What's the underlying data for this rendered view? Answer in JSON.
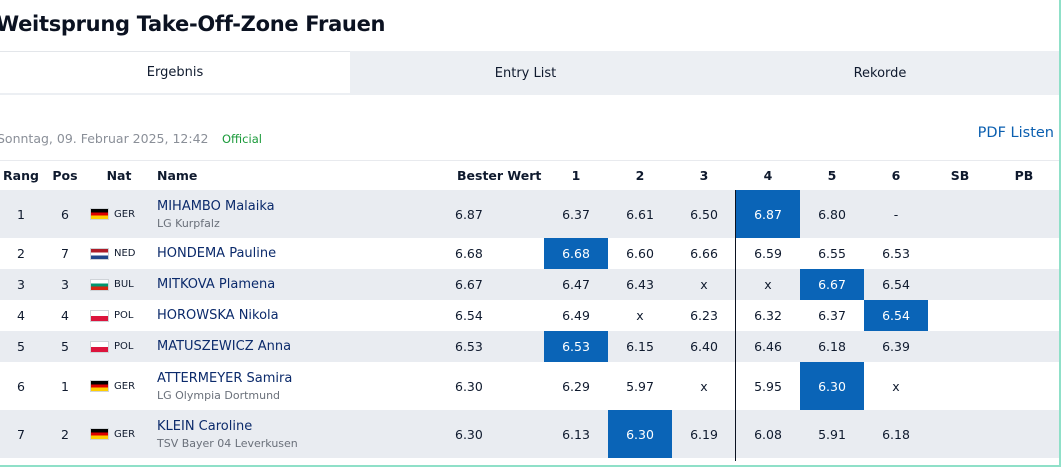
{
  "page": {
    "title": "Weitsprung Take-Off-Zone Frauen",
    "date": "Sonntag, 09. Februar 2025, 12:42",
    "status": "Official",
    "pdf_link": "PDF Listen"
  },
  "tabs": [
    {
      "label": "Ergebnis",
      "active": true
    },
    {
      "label": "Entry List",
      "active": false
    },
    {
      "label": "Rekorde",
      "active": false
    }
  ],
  "table": {
    "columns": {
      "rang": "Rang",
      "pos": "Pos",
      "nat": "Nat",
      "name": "Name",
      "best": "Bester Wert",
      "a1": "1",
      "a2": "2",
      "a3": "3",
      "a4": "4",
      "a5": "5",
      "a6": "6",
      "sb": "SB",
      "pb": "PB"
    },
    "highlight_color": "#0a64b7",
    "rows": [
      {
        "rang": "1",
        "pos": "6",
        "nat": "GER",
        "flag": "flag-ger",
        "name": "MIHAMBO Malaika",
        "club": "LG Kurpfalz",
        "best": "6.87",
        "attempts": [
          "6.37",
          "6.61",
          "6.50",
          "6.87",
          "6.80",
          "-"
        ],
        "best_index": 3,
        "sb": "",
        "pb": ""
      },
      {
        "rang": "2",
        "pos": "7",
        "nat": "NED",
        "flag": "flag-ned",
        "name": "HONDEMA Pauline",
        "club": "",
        "best": "6.68",
        "attempts": [
          "6.68",
          "6.60",
          "6.66",
          "6.59",
          "6.55",
          "6.53"
        ],
        "best_index": 0,
        "sb": "",
        "pb": ""
      },
      {
        "rang": "3",
        "pos": "3",
        "nat": "BUL",
        "flag": "flag-bul",
        "name": "MITKOVA Plamena",
        "club": "",
        "best": "6.67",
        "attempts": [
          "6.47",
          "6.43",
          "x",
          "x",
          "6.67",
          "6.54"
        ],
        "best_index": 4,
        "sb": "",
        "pb": ""
      },
      {
        "rang": "4",
        "pos": "4",
        "nat": "POL",
        "flag": "flag-pol",
        "name": "HOROWSKA Nikola",
        "club": "",
        "best": "6.54",
        "attempts": [
          "6.49",
          "x",
          "6.23",
          "6.32",
          "6.37",
          "6.54"
        ],
        "best_index": 5,
        "sb": "",
        "pb": ""
      },
      {
        "rang": "5",
        "pos": "5",
        "nat": "POL",
        "flag": "flag-pol",
        "name": "MATUSZEWICZ Anna",
        "club": "",
        "best": "6.53",
        "attempts": [
          "6.53",
          "6.15",
          "6.40",
          "6.46",
          "6.18",
          "6.39"
        ],
        "best_index": 0,
        "sb": "",
        "pb": ""
      },
      {
        "rang": "6",
        "pos": "1",
        "nat": "GER",
        "flag": "flag-ger",
        "name": "ATTERMEYER Samira",
        "club": "LG Olympia Dortmund",
        "best": "6.30",
        "attempts": [
          "6.29",
          "5.97",
          "x",
          "5.95",
          "6.30",
          "x"
        ],
        "best_index": 4,
        "sb": "",
        "pb": ""
      },
      {
        "rang": "7",
        "pos": "2",
        "nat": "GER",
        "flag": "flag-ger",
        "name": "KLEIN Caroline",
        "club": "TSV Bayer 04 Leverkusen",
        "best": "6.30",
        "attempts": [
          "6.13",
          "6.30",
          "6.19",
          "6.08",
          "5.91",
          "6.18"
        ],
        "best_index": 1,
        "sb": "",
        "pb": ""
      }
    ]
  }
}
